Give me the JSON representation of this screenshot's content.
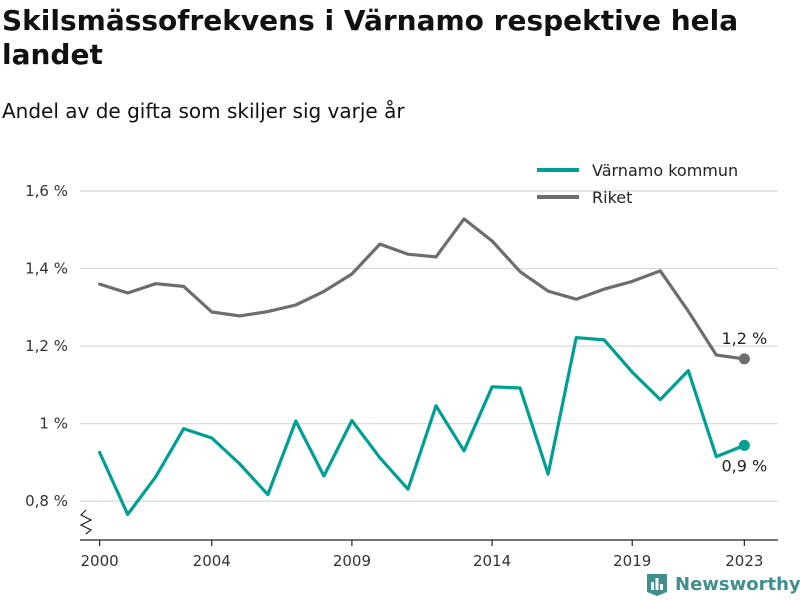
{
  "title": "Skilsmässofrekvens i Värnamo respektive hela landet",
  "subtitle": "Andel av de gifta som skiljer sig varje år",
  "brand": {
    "name": "Newsworthy",
    "color": "#3f8f8f",
    "icon": "bar-chart-logo-icon"
  },
  "chart_data": {
    "type": "line",
    "x": [
      2000,
      2001,
      2002,
      2003,
      2004,
      2005,
      2006,
      2007,
      2008,
      2009,
      2010,
      2011,
      2012,
      2013,
      2014,
      2015,
      2016,
      2017,
      2018,
      2019,
      2020,
      2021,
      2022,
      2023
    ],
    "series": [
      {
        "name": "Värnamo kommun",
        "color": "#009f96",
        "values": [
          0.926,
          0.766,
          0.863,
          0.987,
          0.963,
          0.896,
          0.817,
          1.007,
          0.865,
          1.008,
          0.912,
          0.831,
          1.046,
          0.93,
          1.095,
          1.092,
          0.87,
          1.222,
          1.216,
          1.133,
          1.062,
          1.137,
          0.915,
          0.944
        ],
        "end_label": "0,9 %"
      },
      {
        "name": "Riket",
        "color": "#6d6d71",
        "values": [
          1.36,
          1.337,
          1.361,
          1.354,
          1.288,
          1.278,
          1.289,
          1.306,
          1.341,
          1.386,
          1.463,
          1.437,
          1.43,
          1.528,
          1.471,
          1.392,
          1.342,
          1.321,
          1.347,
          1.367,
          1.394,
          1.29,
          1.177,
          1.167
        ],
        "end_label": "1,2 %"
      }
    ],
    "ylim": [
      0.7,
      1.68
    ],
    "y_ticks": [
      {
        "value": 0.8,
        "label": "0,8 %"
      },
      {
        "value": 1.0,
        "label": "1 %"
      },
      {
        "value": 1.2,
        "label": "1,2 %"
      },
      {
        "value": 1.4,
        "label": "1,4 %"
      },
      {
        "value": 1.6,
        "label": "1,6 %"
      }
    ],
    "x_ticks": [
      {
        "value": 2000,
        "label": "2000"
      },
      {
        "value": 2004,
        "label": "2004"
      },
      {
        "value": 2009,
        "label": "2009"
      },
      {
        "value": 2014,
        "label": "2014"
      },
      {
        "value": 2019,
        "label": "2019"
      },
      {
        "value": 2023,
        "label": "2023"
      }
    ],
    "xlim": [
      1999.3,
      2024.2
    ],
    "grid": true,
    "y_axis_break": true,
    "legend_position": "top-right"
  }
}
